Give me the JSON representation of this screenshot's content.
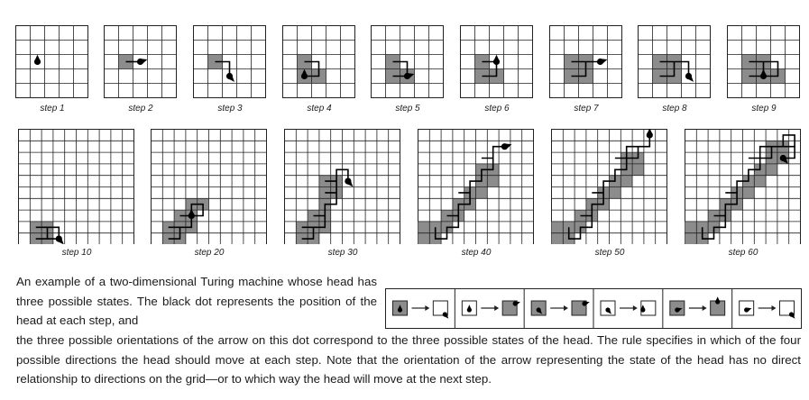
{
  "colors": {
    "grid_line": "#222222",
    "filled_cell": "#8c8c8c",
    "head": "#000000",
    "paper": "#ffffff"
  },
  "small_steps": [
    {
      "label": "step 1",
      "filled": [],
      "path": [],
      "head": [
        1,
        2
      ],
      "dir": "up"
    },
    {
      "label": "step 2",
      "filled": [
        [
          1,
          2
        ]
      ],
      "path": [
        [
          1,
          2
        ],
        [
          2,
          2
        ]
      ],
      "head": [
        2,
        2
      ],
      "dir": "right"
    },
    {
      "label": "step 3",
      "filled": [
        [
          1,
          2
        ]
      ],
      "path": [
        [
          1,
          2
        ],
        [
          2,
          2
        ],
        [
          2,
          3
        ]
      ],
      "head": [
        2,
        3
      ],
      "dir": "down"
    },
    {
      "label": "step 4",
      "filled": [
        [
          1,
          2
        ],
        [
          1,
          3
        ],
        [
          2,
          3
        ]
      ],
      "path": [
        [
          1,
          2
        ],
        [
          2,
          2
        ],
        [
          2,
          3
        ],
        [
          1,
          3
        ]
      ],
      "head": [
        1,
        3
      ],
      "dir": "up"
    },
    {
      "label": "step 5",
      "filled": [
        [
          1,
          2
        ],
        [
          1,
          3
        ],
        [
          2,
          3
        ]
      ],
      "path": [
        [
          1,
          2
        ],
        [
          2,
          2
        ],
        [
          2,
          3
        ],
        [
          1,
          3
        ],
        [
          2,
          3
        ]
      ],
      "head": [
        2,
        3
      ],
      "dir": "right"
    },
    {
      "label": "step 6",
      "filled": [
        [
          1,
          2
        ],
        [
          1,
          3
        ],
        [
          2,
          3
        ]
      ],
      "path": [
        [
          1,
          2
        ],
        [
          2,
          2
        ],
        [
          2,
          3
        ],
        [
          1,
          3
        ],
        [
          2,
          3
        ],
        [
          2,
          2
        ]
      ],
      "head": [
        2,
        2
      ],
      "dir": "up"
    },
    {
      "label": "step 7",
      "filled": [
        [
          1,
          2
        ],
        [
          1,
          3
        ],
        [
          2,
          3
        ],
        [
          2,
          2
        ]
      ],
      "path": [
        [
          1,
          2
        ],
        [
          2,
          2
        ],
        [
          2,
          3
        ],
        [
          1,
          3
        ],
        [
          2,
          3
        ],
        [
          2,
          2
        ],
        [
          3,
          2
        ]
      ],
      "head": [
        3,
        2
      ],
      "dir": "right"
    },
    {
      "label": "step 8",
      "filled": [
        [
          1,
          2
        ],
        [
          1,
          3
        ],
        [
          2,
          3
        ],
        [
          2,
          2
        ]
      ],
      "path": [
        [
          1,
          2
        ],
        [
          2,
          2
        ],
        [
          2,
          3
        ],
        [
          1,
          3
        ],
        [
          2,
          3
        ],
        [
          2,
          2
        ],
        [
          3,
          2
        ],
        [
          3,
          3
        ]
      ],
      "head": [
        3,
        3
      ],
      "dir": "down"
    },
    {
      "label": "step 9",
      "filled": [
        [
          1,
          2
        ],
        [
          1,
          3
        ],
        [
          2,
          3
        ],
        [
          2,
          2
        ],
        [
          3,
          3
        ]
      ],
      "path": [
        [
          1,
          2
        ],
        [
          2,
          2
        ],
        [
          2,
          3
        ],
        [
          1,
          3
        ],
        [
          2,
          3
        ],
        [
          2,
          2
        ],
        [
          3,
          2
        ],
        [
          3,
          3
        ],
        [
          2,
          3
        ]
      ],
      "head": [
        2,
        3
      ],
      "dir": "up"
    }
  ],
  "large_steps": [
    {
      "label": "step 10",
      "filled": [
        [
          1,
          8
        ],
        [
          2,
          8
        ],
        [
          2,
          9
        ],
        [
          1,
          9
        ]
      ],
      "path": [
        [
          1,
          8
        ],
        [
          2,
          8
        ],
        [
          2,
          9
        ],
        [
          1,
          9
        ],
        [
          2,
          9
        ],
        [
          2,
          8
        ],
        [
          3,
          8
        ],
        [
          3,
          9
        ],
        [
          2,
          9
        ],
        [
          3,
          9
        ]
      ],
      "head": [
        3,
        9
      ],
      "dir": "down"
    },
    {
      "label": "step 20",
      "filled": [
        [
          1,
          8
        ],
        [
          1,
          9
        ],
        [
          2,
          8
        ],
        [
          2,
          9
        ],
        [
          2,
          7
        ],
        [
          3,
          7
        ],
        [
          3,
          6
        ],
        [
          4,
          6
        ],
        [
          3,
          8
        ]
      ],
      "path": [
        [
          1,
          8
        ],
        [
          2,
          8
        ],
        [
          2,
          9
        ],
        [
          1,
          9
        ],
        [
          2,
          9
        ],
        [
          2,
          8
        ],
        [
          3,
          8
        ],
        [
          3,
          7
        ],
        [
          2,
          7
        ],
        [
          3,
          7
        ],
        [
          3,
          6
        ],
        [
          4,
          6
        ],
        [
          4,
          7
        ],
        [
          3,
          7
        ]
      ],
      "head": [
        3,
        7
      ],
      "dir": "up"
    },
    {
      "label": "step 30",
      "filled": [
        [
          1,
          8
        ],
        [
          1,
          9
        ],
        [
          2,
          8
        ],
        [
          2,
          9
        ],
        [
          2,
          7
        ],
        [
          3,
          7
        ],
        [
          3,
          6
        ],
        [
          3,
          5
        ],
        [
          4,
          5
        ],
        [
          4,
          4
        ],
        [
          3,
          4
        ],
        [
          3,
          8
        ]
      ],
      "path": [
        [
          1,
          8
        ],
        [
          2,
          8
        ],
        [
          2,
          9
        ],
        [
          1,
          9
        ],
        [
          2,
          9
        ],
        [
          2,
          8
        ],
        [
          3,
          8
        ],
        [
          3,
          7
        ],
        [
          2,
          7
        ],
        [
          3,
          7
        ],
        [
          3,
          6
        ],
        [
          4,
          6
        ],
        [
          4,
          5
        ],
        [
          3,
          5
        ],
        [
          4,
          5
        ],
        [
          4,
          4
        ],
        [
          3,
          4
        ],
        [
          4,
          4
        ],
        [
          4,
          3
        ],
        [
          5,
          3
        ],
        [
          5,
          4
        ]
      ],
      "head": [
        5,
        4
      ],
      "dir": "down"
    },
    {
      "label": "step 40",
      "filled": [
        [
          0,
          8
        ],
        [
          0,
          9
        ],
        [
          1,
          8
        ],
        [
          1,
          9
        ],
        [
          2,
          7
        ],
        [
          2,
          8
        ],
        [
          3,
          6
        ],
        [
          3,
          7
        ],
        [
          4,
          5
        ],
        [
          4,
          6
        ],
        [
          5,
          4
        ],
        [
          5,
          5
        ],
        [
          6,
          3
        ],
        [
          6,
          4
        ],
        [
          5,
          3
        ]
      ],
      "path": [
        [
          1,
          8
        ],
        [
          1,
          9
        ],
        [
          2,
          9
        ],
        [
          2,
          8
        ],
        [
          3,
          8
        ],
        [
          3,
          7
        ],
        [
          2,
          7
        ],
        [
          3,
          7
        ],
        [
          3,
          6
        ],
        [
          4,
          6
        ],
        [
          4,
          5
        ],
        [
          3,
          5
        ],
        [
          4,
          5
        ],
        [
          4,
          4
        ],
        [
          5,
          4
        ],
        [
          5,
          3
        ],
        [
          6,
          3
        ],
        [
          6,
          2
        ],
        [
          5,
          2
        ],
        [
          6,
          2
        ],
        [
          6,
          1
        ],
        [
          7,
          1
        ]
      ],
      "head": [
        7,
        1
      ],
      "dir": "right"
    },
    {
      "label": "step 50",
      "filled": [
        [
          0,
          8
        ],
        [
          0,
          9
        ],
        [
          1,
          8
        ],
        [
          1,
          9
        ],
        [
          2,
          7
        ],
        [
          2,
          8
        ],
        [
          3,
          6
        ],
        [
          3,
          7
        ],
        [
          4,
          5
        ],
        [
          4,
          6
        ],
        [
          5,
          4
        ],
        [
          5,
          5
        ],
        [
          6,
          3
        ],
        [
          6,
          4
        ],
        [
          7,
          2
        ],
        [
          7,
          3
        ],
        [
          6,
          2
        ]
      ],
      "path": [
        [
          1,
          8
        ],
        [
          1,
          9
        ],
        [
          2,
          9
        ],
        [
          2,
          8
        ],
        [
          3,
          8
        ],
        [
          3,
          7
        ],
        [
          2,
          7
        ],
        [
          3,
          7
        ],
        [
          3,
          6
        ],
        [
          4,
          6
        ],
        [
          4,
          5
        ],
        [
          3,
          5
        ],
        [
          4,
          5
        ],
        [
          4,
          4
        ],
        [
          5,
          4
        ],
        [
          5,
          3
        ],
        [
          6,
          3
        ],
        [
          6,
          2
        ],
        [
          5,
          2
        ],
        [
          6,
          2
        ],
        [
          6,
          1
        ],
        [
          7,
          1
        ],
        [
          7,
          2
        ],
        [
          6,
          2
        ],
        [
          7,
          2
        ],
        [
          7,
          1
        ],
        [
          8,
          1
        ],
        [
          8,
          0
        ]
      ],
      "head": [
        8,
        0
      ],
      "dir": "up"
    },
    {
      "label": "step 60",
      "filled": [
        [
          0,
          8
        ],
        [
          0,
          9
        ],
        [
          1,
          8
        ],
        [
          1,
          9
        ],
        [
          2,
          7
        ],
        [
          2,
          8
        ],
        [
          3,
          6
        ],
        [
          3,
          7
        ],
        [
          4,
          5
        ],
        [
          4,
          6
        ],
        [
          5,
          4
        ],
        [
          5,
          5
        ],
        [
          6,
          3
        ],
        [
          6,
          4
        ],
        [
          7,
          2
        ],
        [
          7,
          3
        ],
        [
          8,
          1
        ],
        [
          8,
          2
        ],
        [
          7,
          1
        ]
      ],
      "path": [
        [
          1,
          8
        ],
        [
          1,
          9
        ],
        [
          2,
          9
        ],
        [
          2,
          8
        ],
        [
          3,
          8
        ],
        [
          3,
          7
        ],
        [
          2,
          7
        ],
        [
          3,
          7
        ],
        [
          3,
          6
        ],
        [
          4,
          6
        ],
        [
          4,
          5
        ],
        [
          3,
          5
        ],
        [
          4,
          5
        ],
        [
          4,
          4
        ],
        [
          5,
          4
        ],
        [
          5,
          3
        ],
        [
          6,
          3
        ],
        [
          6,
          2
        ],
        [
          5,
          2
        ],
        [
          6,
          2
        ],
        [
          6,
          1
        ],
        [
          7,
          1
        ],
        [
          7,
          2
        ],
        [
          6,
          2
        ],
        [
          7,
          2
        ],
        [
          7,
          1
        ],
        [
          8,
          1
        ],
        [
          8,
          0
        ],
        [
          9,
          0
        ],
        [
          9,
          1
        ],
        [
          8,
          1
        ],
        [
          9,
          1
        ],
        [
          9,
          2
        ],
        [
          8,
          2
        ]
      ],
      "head": [
        8,
        2
      ],
      "dir": "down"
    }
  ],
  "rules": [
    {
      "from_cell": "gray",
      "from_dir": "up",
      "to_cell": "white",
      "to_dir": "down"
    },
    {
      "from_cell": "white",
      "from_dir": "up",
      "to_cell": "gray",
      "to_dir": "right"
    },
    {
      "from_cell": "gray",
      "from_dir": "down",
      "to_cell": "gray",
      "to_dir": "right"
    },
    {
      "from_cell": "white",
      "from_dir": "down",
      "to_cell": "white",
      "to_dir": "up"
    },
    {
      "from_cell": "gray",
      "from_dir": "right",
      "to_cell": "gray",
      "to_dir": "up"
    },
    {
      "from_cell": "white",
      "from_dir": "right",
      "to_cell": "white",
      "to_dir": "down"
    }
  ],
  "caption_part1": "An example of a two-dimensional Turing machine whose head has three possible states. The black dot represents the position of the head at each step, and",
  "caption_part2": "the three possible orientations of the arrow on this dot correspond to the three possible states of the head. The rule specifies in which of the four possible directions the head should move at each step. Note that the orientation of the arrow representing the state of the head has no direct relationship to directions on the grid—or to which way the head will move at the next step."
}
